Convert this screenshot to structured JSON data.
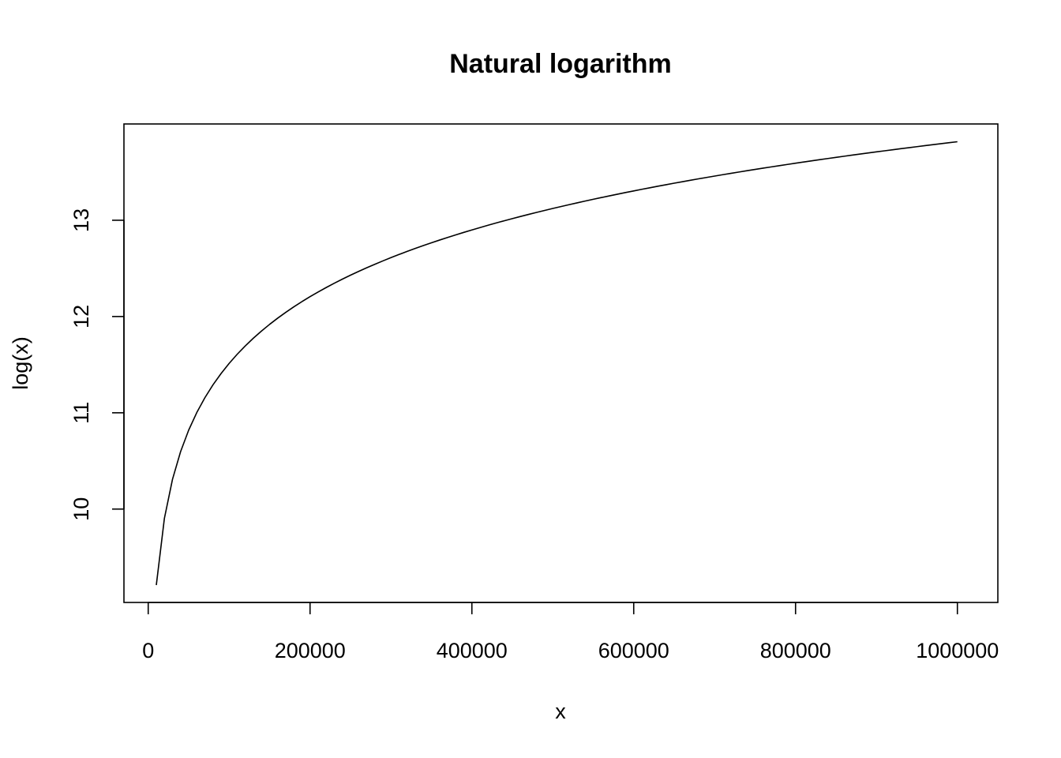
{
  "chart_data": {
    "type": "line",
    "title": "Natural logarithm",
    "xlabel": "x",
    "ylabel": "log(x)",
    "function": "log(x)",
    "x_domain": [
      10000,
      1000000
    ],
    "x_step": 10000,
    "xlim": [
      -30000,
      1050000
    ],
    "ylim": [
      9.03,
      14.0
    ],
    "x_ticks": [
      0,
      200000,
      400000,
      600000,
      800000,
      1000000
    ],
    "x_tick_labels": [
      "0",
      "200000",
      "400000",
      "600000",
      "800000",
      "1000000"
    ],
    "y_ticks": [
      10,
      11,
      12,
      13
    ],
    "y_tick_labels": [
      "10",
      "11",
      "12",
      "13"
    ],
    "grid": false,
    "legend": "none",
    "line_color": "#000000"
  }
}
